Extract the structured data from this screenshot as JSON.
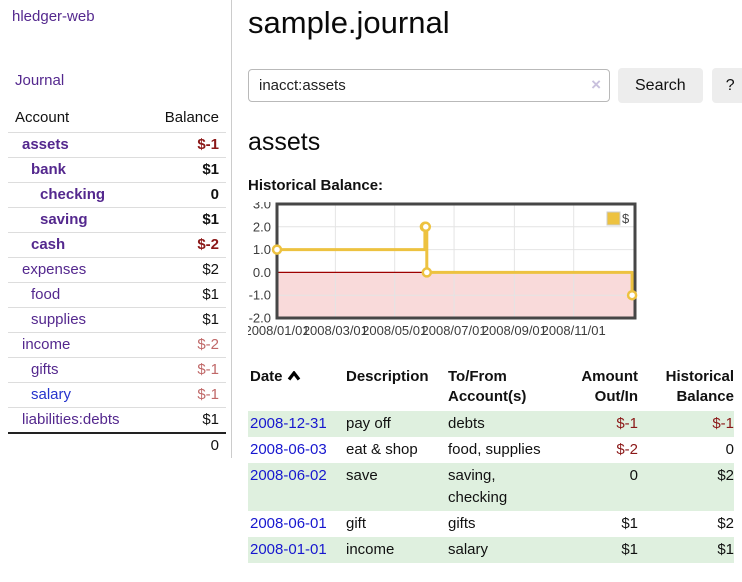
{
  "sidebar": {
    "brand": "hledger-web",
    "journal_link": "Journal",
    "account_header": "Account",
    "balance_header": "Balance",
    "accounts": [
      {
        "name": "assets",
        "balance": "$-1"
      },
      {
        "name": "bank",
        "balance": "$1"
      },
      {
        "name": "checking",
        "balance": "0"
      },
      {
        "name": "saving",
        "balance": "$1"
      },
      {
        "name": "cash",
        "balance": "$-2"
      },
      {
        "name": "expenses",
        "balance": "$2"
      },
      {
        "name": "food",
        "balance": "$1"
      },
      {
        "name": "supplies",
        "balance": "$1"
      },
      {
        "name": "income",
        "balance": "$-2"
      },
      {
        "name": "gifts",
        "balance": "$-1"
      },
      {
        "name": "salary",
        "balance": "$-1"
      },
      {
        "name": "liabilities:debts",
        "balance": "$1"
      }
    ],
    "total_balance": "0"
  },
  "header": {
    "title": "sample.journal"
  },
  "search": {
    "query": "inacct:assets",
    "clear_label": "×",
    "search_button": "Search",
    "help_button": "?"
  },
  "account_view": {
    "heading": "assets",
    "section_label": "Historical Balance:"
  },
  "chart_data": {
    "type": "line",
    "style": "step",
    "title": "Historical Balance of assets",
    "series": [
      {
        "name": "$",
        "color": "#edc240",
        "points": [
          [
            "2008-01-01",
            1
          ],
          [
            "2008-06-01",
            2
          ],
          [
            "2008-06-02",
            2
          ],
          [
            "2008-06-03",
            0
          ],
          [
            "2008-12-31",
            -1
          ]
        ]
      }
    ],
    "x_ticks": [
      "2008/01/01",
      "2008/03/01",
      "2008/05/01",
      "2008/07/01",
      "2008/09/01",
      "2008/11/01"
    ],
    "y_ticks": [
      "3.0",
      "2.0",
      "1.0",
      "0.0",
      "-1.0",
      "-2.0"
    ],
    "ylim": [
      -2,
      3
    ],
    "grid": true,
    "legend_label": "$",
    "legend_position": "top-right",
    "negative_region_color": "#f9dada",
    "zero_line_color": "#9e0000"
  },
  "register": {
    "headers": {
      "date": "Date",
      "description": "Description",
      "tofrom": "To/From Account(s)",
      "amount": "Amount Out/In",
      "historical": "Historical Balance"
    },
    "rows": [
      {
        "date": "2008-12-31",
        "description": "pay off",
        "accounts": "debts",
        "amount": "$-1",
        "balance": "$-1"
      },
      {
        "date": "2008-06-03",
        "description": "eat & shop",
        "accounts": "food, supplies",
        "amount": "$-2",
        "balance": "0"
      },
      {
        "date": "2008-06-02",
        "description": "save",
        "accounts": "saving, checking",
        "amount": "0",
        "balance": "$2"
      },
      {
        "date": "2008-06-01",
        "description": "gift",
        "accounts": "gifts",
        "amount": "$1",
        "balance": "$2"
      },
      {
        "date": "2008-01-01",
        "description": "income",
        "accounts": "salary",
        "amount": "$1",
        "balance": "$1"
      }
    ]
  }
}
